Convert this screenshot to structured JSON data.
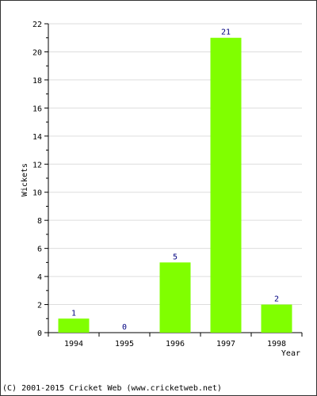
{
  "chart_data": {
    "type": "bar",
    "categories": [
      "1994",
      "1995",
      "1996",
      "1997",
      "1998"
    ],
    "values": [
      1,
      0,
      5,
      21,
      2
    ],
    "data_labels": [
      "1",
      "0",
      "5",
      "21",
      "2"
    ],
    "xlabel": "Year",
    "ylabel": "Wickets",
    "ylim": [
      0,
      22
    ],
    "yticks": [
      0,
      2,
      4,
      6,
      8,
      10,
      12,
      14,
      16,
      18,
      20,
      22
    ],
    "grid": true,
    "bar_color": "#80ff00",
    "label_color": "#000080"
  },
  "footer": {
    "copyright": "(C) 2001-2015 Cricket Web (www.cricketweb.net)"
  }
}
